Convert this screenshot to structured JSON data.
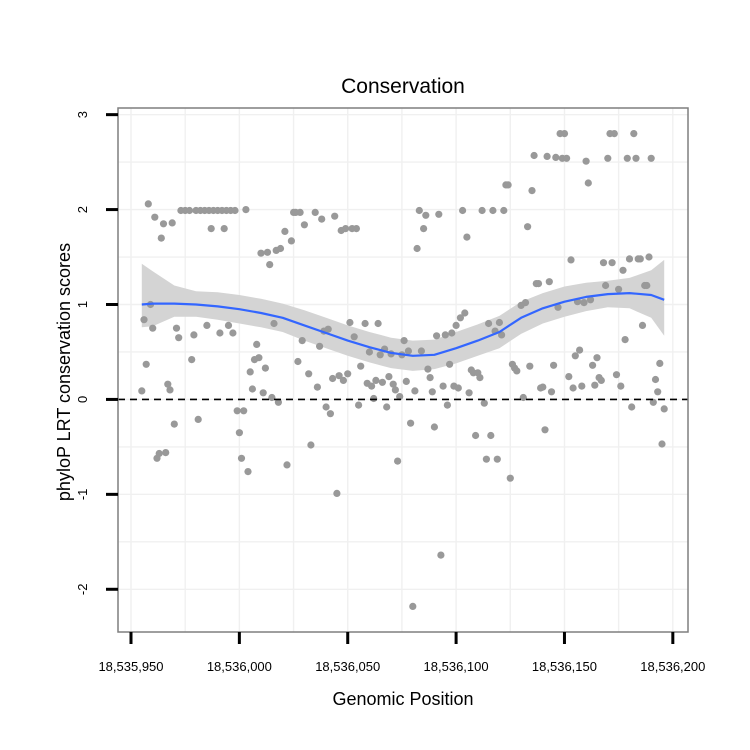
{
  "chart_data": {
    "type": "scatter",
    "title": "Conservation",
    "xlabel": "Genomic Position",
    "ylabel": "phyloP LRT conservation scores",
    "xlim": [
      18535944,
      18536207
    ],
    "ylim": [
      -2.45,
      3.07
    ],
    "x_ticks": [
      18535950,
      18536000,
      18536050,
      18536100,
      18536150,
      18536200
    ],
    "x_tick_labels": [
      "18,535,950",
      "18,536,000",
      "18,536,050",
      "18,536,100",
      "18,536,150",
      "18,536,200"
    ],
    "y_ticks": [
      -2,
      -1,
      0,
      1,
      2,
      3
    ],
    "y_tick_labels": [
      "-2",
      "-1",
      "0",
      "1",
      "2",
      "3"
    ],
    "reference_line": {
      "y": 0,
      "style": "dashed"
    },
    "colors": {
      "points": "#999999",
      "trend": "#3366ff",
      "band": "#d4d4d4",
      "grid": "#f0f0f0",
      "frame": "#7f7f7f"
    },
    "points": [
      [
        18535955,
        0.09
      ],
      [
        18535956,
        0.84
      ],
      [
        18535957,
        0.37
      ],
      [
        18535958,
        2.06
      ],
      [
        18535959,
        1.0
      ],
      [
        18535960,
        0.75
      ],
      [
        18535961,
        1.92
      ],
      [
        18535962,
        -0.62
      ],
      [
        18535963,
        -0.57
      ],
      [
        18535964,
        1.7
      ],
      [
        18535965,
        1.85
      ],
      [
        18535966,
        -0.56
      ],
      [
        18535967,
        0.16
      ],
      [
        18535968,
        0.1
      ],
      [
        18535969,
        1.86
      ],
      [
        18535970,
        -0.26
      ],
      [
        18535971,
        0.75
      ],
      [
        18535972,
        0.65
      ],
      [
        18535973,
        1.99
      ],
      [
        18535975,
        1.99
      ],
      [
        18535977,
        1.99
      ],
      [
        18535978,
        0.42
      ],
      [
        18535979,
        0.68
      ],
      [
        18535980,
        1.99
      ],
      [
        18535981,
        -0.21
      ],
      [
        18535982,
        1.99
      ],
      [
        18535984,
        1.99
      ],
      [
        18535985,
        0.78
      ],
      [
        18535986,
        1.99
      ],
      [
        18535987,
        1.8
      ],
      [
        18535988,
        1.99
      ],
      [
        18535990,
        1.99
      ],
      [
        18535991,
        0.7
      ],
      [
        18535992,
        1.99
      ],
      [
        18535993,
        1.8
      ],
      [
        18535994,
        1.99
      ],
      [
        18535995,
        0.78
      ],
      [
        18535996,
        1.99
      ],
      [
        18535997,
        0.7
      ],
      [
        18535998,
        1.99
      ],
      [
        18535999,
        -0.12
      ],
      [
        18536000,
        -0.35
      ],
      [
        18536001,
        -0.62
      ],
      [
        18536002,
        -0.12
      ],
      [
        18536003,
        2.0
      ],
      [
        18536004,
        -0.76
      ],
      [
        18536005,
        0.29
      ],
      [
        18536006,
        0.11
      ],
      [
        18536007,
        0.42
      ],
      [
        18536008,
        0.58
      ],
      [
        18536009,
        0.44
      ],
      [
        18536010,
        1.54
      ],
      [
        18536011,
        0.07
      ],
      [
        18536012,
        0.33
      ],
      [
        18536013,
        1.55
      ],
      [
        18536014,
        1.42
      ],
      [
        18536015,
        0.02
      ],
      [
        18536016,
        0.8
      ],
      [
        18536017,
        1.57
      ],
      [
        18536018,
        -0.03
      ],
      [
        18536019,
        1.59
      ],
      [
        18536021,
        1.77
      ],
      [
        18536022,
        -0.69
      ],
      [
        18536024,
        1.67
      ],
      [
        18536025,
        1.97
      ],
      [
        18536026,
        1.97
      ],
      [
        18536027,
        0.4
      ],
      [
        18536028,
        1.97
      ],
      [
        18536029,
        0.62
      ],
      [
        18536030,
        1.84
      ],
      [
        18536032,
        0.27
      ],
      [
        18536033,
        -0.48
      ],
      [
        18536035,
        1.97
      ],
      [
        18536036,
        0.13
      ],
      [
        18536037,
        0.56
      ],
      [
        18536038,
        1.9
      ],
      [
        18536039,
        0.72
      ],
      [
        18536040,
        -0.08
      ],
      [
        18536041,
        0.74
      ],
      [
        18536042,
        -0.15
      ],
      [
        18536043,
        0.22
      ],
      [
        18536044,
        1.93
      ],
      [
        18536045,
        -0.99
      ],
      [
        18536046,
        0.25
      ],
      [
        18536047,
        1.78
      ],
      [
        18536048,
        0.2
      ],
      [
        18536049,
        1.8
      ],
      [
        18536050,
        0.27
      ],
      [
        18536051,
        0.81
      ],
      [
        18536052,
        1.8
      ],
      [
        18536053,
        0.66
      ],
      [
        18536054,
        1.8
      ],
      [
        18536055,
        -0.06
      ],
      [
        18536056,
        0.35
      ],
      [
        18536058,
        0.8
      ],
      [
        18536059,
        0.17
      ],
      [
        18536060,
        0.5
      ],
      [
        18536061,
        0.14
      ],
      [
        18536062,
        0.01
      ],
      [
        18536063,
        0.2
      ],
      [
        18536064,
        0.8
      ],
      [
        18536065,
        0.47
      ],
      [
        18536066,
        0.18
      ],
      [
        18536067,
        0.53
      ],
      [
        18536068,
        -0.08
      ],
      [
        18536069,
        0.24
      ],
      [
        18536070,
        0.48
      ],
      [
        18536071,
        0.16
      ],
      [
        18536072,
        0.1
      ],
      [
        18536073,
        -0.65
      ],
      [
        18536074,
        0.03
      ],
      [
        18536075,
        0.47
      ],
      [
        18536076,
        0.62
      ],
      [
        18536077,
        0.19
      ],
      [
        18536078,
        0.51
      ],
      [
        18536079,
        -0.25
      ],
      [
        18536080,
        -2.18
      ],
      [
        18536081,
        0.09
      ],
      [
        18536082,
        1.59
      ],
      [
        18536083,
        1.99
      ],
      [
        18536084,
        0.51
      ],
      [
        18536085,
        1.8
      ],
      [
        18536086,
        1.94
      ],
      [
        18536087,
        0.32
      ],
      [
        18536088,
        0.23
      ],
      [
        18536089,
        0.08
      ],
      [
        18536090,
        -0.29
      ],
      [
        18536091,
        0.67
      ],
      [
        18536092,
        1.95
      ],
      [
        18536093,
        -1.64
      ],
      [
        18536094,
        0.14
      ],
      [
        18536095,
        0.68
      ],
      [
        18536096,
        -0.06
      ],
      [
        18536097,
        0.37
      ],
      [
        18536098,
        0.7
      ],
      [
        18536099,
        0.14
      ],
      [
        18536100,
        0.78
      ],
      [
        18536101,
        0.12
      ],
      [
        18536102,
        0.86
      ],
      [
        18536103,
        1.99
      ],
      [
        18536104,
        0.91
      ],
      [
        18536105,
        1.71
      ],
      [
        18536106,
        0.07
      ],
      [
        18536107,
        0.31
      ],
      [
        18536108,
        0.28
      ],
      [
        18536109,
        -0.38
      ],
      [
        18536110,
        0.28
      ],
      [
        18536111,
        0.23
      ],
      [
        18536112,
        1.99
      ],
      [
        18536113,
        -0.04
      ],
      [
        18536114,
        -0.63
      ],
      [
        18536115,
        0.8
      ],
      [
        18536116,
        -0.38
      ],
      [
        18536117,
        1.99
      ],
      [
        18536118,
        0.72
      ],
      [
        18536119,
        -0.63
      ],
      [
        18536120,
        0.81
      ],
      [
        18536121,
        0.68
      ],
      [
        18536122,
        1.99
      ],
      [
        18536123,
        2.26
      ],
      [
        18536124,
        2.26
      ],
      [
        18536125,
        -0.83
      ],
      [
        18536126,
        0.37
      ],
      [
        18536127,
        0.33
      ],
      [
        18536128,
        0.3
      ],
      [
        18536130,
        0.99
      ],
      [
        18536131,
        0.02
      ],
      [
        18536132,
        1.02
      ],
      [
        18536133,
        1.82
      ],
      [
        18536134,
        0.35
      ],
      [
        18536135,
        2.2
      ],
      [
        18536136,
        2.57
      ],
      [
        18536137,
        1.22
      ],
      [
        18536138,
        1.22
      ],
      [
        18536139,
        0.12
      ],
      [
        18536140,
        0.13
      ],
      [
        18536141,
        -0.32
      ],
      [
        18536142,
        2.56
      ],
      [
        18536143,
        1.24
      ],
      [
        18536144,
        0.08
      ],
      [
        18536145,
        0.36
      ],
      [
        18536146,
        2.55
      ],
      [
        18536147,
        0.97
      ],
      [
        18536148,
        2.8
      ],
      [
        18536149,
        2.54
      ],
      [
        18536150,
        2.8
      ],
      [
        18536151,
        2.54
      ],
      [
        18536152,
        0.24
      ],
      [
        18536153,
        1.47
      ],
      [
        18536154,
        0.12
      ],
      [
        18536155,
        0.46
      ],
      [
        18536156,
        1.03
      ],
      [
        18536157,
        0.52
      ],
      [
        18536158,
        0.14
      ],
      [
        18536159,
        1.02
      ],
      [
        18536160,
        2.51
      ],
      [
        18536161,
        2.28
      ],
      [
        18536162,
        1.05
      ],
      [
        18536163,
        0.36
      ],
      [
        18536164,
        0.15
      ],
      [
        18536165,
        0.44
      ],
      [
        18536166,
        0.23
      ],
      [
        18536167,
        0.2
      ],
      [
        18536168,
        1.44
      ],
      [
        18536169,
        1.2
      ],
      [
        18536170,
        2.54
      ],
      [
        18536171,
        2.8
      ],
      [
        18536172,
        1.44
      ],
      [
        18536173,
        2.8
      ],
      [
        18536174,
        0.26
      ],
      [
        18536175,
        1.16
      ],
      [
        18536176,
        0.14
      ],
      [
        18536177,
        1.36
      ],
      [
        18536178,
        0.63
      ],
      [
        18536179,
        2.54
      ],
      [
        18536180,
        1.48
      ],
      [
        18536181,
        -0.08
      ],
      [
        18536182,
        2.8
      ],
      [
        18536183,
        2.54
      ],
      [
        18536184,
        1.48
      ],
      [
        18536185,
        1.48
      ],
      [
        18536186,
        0.78
      ],
      [
        18536187,
        1.2
      ],
      [
        18536188,
        1.2
      ],
      [
        18536189,
        1.5
      ],
      [
        18536190,
        2.54
      ],
      [
        18536191,
        -0.03
      ],
      [
        18536192,
        0.21
      ],
      [
        18536193,
        0.08
      ],
      [
        18536194,
        0.38
      ],
      [
        18536195,
        -0.47
      ],
      [
        18536196,
        -0.1
      ]
    ],
    "trend": [
      [
        18535955,
        1.0
      ],
      [
        18535960,
        1.01
      ],
      [
        18535970,
        1.01
      ],
      [
        18535980,
        1.0
      ],
      [
        18535990,
        0.98
      ],
      [
        18536000,
        0.95
      ],
      [
        18536010,
        0.91
      ],
      [
        18536020,
        0.86
      ],
      [
        18536030,
        0.78
      ],
      [
        18536040,
        0.7
      ],
      [
        18536050,
        0.62
      ],
      [
        18536060,
        0.55
      ],
      [
        18536070,
        0.49
      ],
      [
        18536080,
        0.46
      ],
      [
        18536090,
        0.47
      ],
      [
        18536100,
        0.54
      ],
      [
        18536110,
        0.62
      ],
      [
        18536120,
        0.71
      ],
      [
        18536130,
        0.86
      ],
      [
        18536140,
        0.96
      ],
      [
        18536150,
        1.03
      ],
      [
        18536160,
        1.08
      ],
      [
        18536170,
        1.11
      ],
      [
        18536180,
        1.12
      ],
      [
        18536190,
        1.1
      ],
      [
        18536196,
        1.05
      ]
    ],
    "band_upper": [
      [
        18535955,
        1.43
      ],
      [
        18535960,
        1.35
      ],
      [
        18535970,
        1.2
      ],
      [
        18535980,
        1.14
      ],
      [
        18535990,
        1.13
      ],
      [
        18536000,
        1.1
      ],
      [
        18536010,
        1.06
      ],
      [
        18536020,
        1.01
      ],
      [
        18536030,
        0.94
      ],
      [
        18536040,
        0.86
      ],
      [
        18536050,
        0.78
      ],
      [
        18536060,
        0.71
      ],
      [
        18536070,
        0.65
      ],
      [
        18536080,
        0.62
      ],
      [
        18536090,
        0.63
      ],
      [
        18536100,
        0.71
      ],
      [
        18536110,
        0.79
      ],
      [
        18536120,
        0.88
      ],
      [
        18536130,
        1.03
      ],
      [
        18536140,
        1.12
      ],
      [
        18536150,
        1.19
      ],
      [
        18536160,
        1.23
      ],
      [
        18536170,
        1.25
      ],
      [
        18536180,
        1.28
      ],
      [
        18536190,
        1.36
      ],
      [
        18536196,
        1.47
      ]
    ],
    "band_lower": [
      [
        18535955,
        0.76
      ],
      [
        18535960,
        0.77
      ],
      [
        18535970,
        0.87
      ],
      [
        18535980,
        0.87
      ],
      [
        18535990,
        0.84
      ],
      [
        18536000,
        0.8
      ],
      [
        18536010,
        0.76
      ],
      [
        18536020,
        0.71
      ],
      [
        18536030,
        0.62
      ],
      [
        18536040,
        0.54
      ],
      [
        18536050,
        0.46
      ],
      [
        18536060,
        0.39
      ],
      [
        18536070,
        0.33
      ],
      [
        18536080,
        0.3
      ],
      [
        18536090,
        0.32
      ],
      [
        18536100,
        0.38
      ],
      [
        18536110,
        0.46
      ],
      [
        18536120,
        0.54
      ],
      [
        18536130,
        0.69
      ],
      [
        18536140,
        0.8
      ],
      [
        18536150,
        0.87
      ],
      [
        18536160,
        0.93
      ],
      [
        18536170,
        0.97
      ],
      [
        18536180,
        0.96
      ],
      [
        18536190,
        0.86
      ],
      [
        18536196,
        0.67
      ]
    ]
  }
}
